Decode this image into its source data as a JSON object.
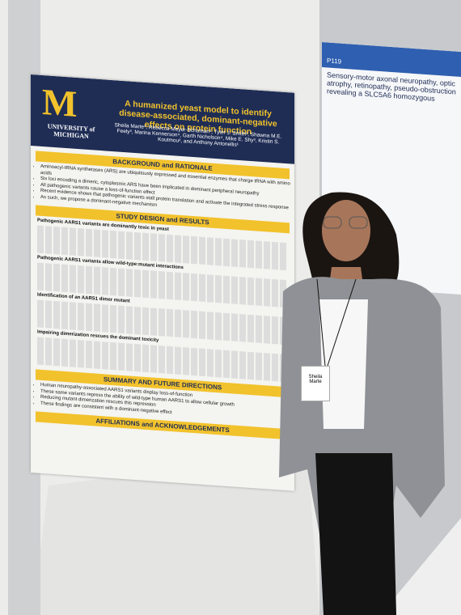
{
  "poster": {
    "logo": "UNIVERSITY of MICHIGAN",
    "title": "A humanized yeast model to identify disease-associated, dominant-negative effects on protein function",
    "authors": "Sheila Marte¹, Rebecca Meyer-Schuman¹, Tyler J. Smith², Shawna M.E. Feely³, Marina Kennerson⁴, Garth Nicholson⁴, Mike E. Shy³, Kristin S. Koutmou², and Anthony Antonellis¹",
    "background": {
      "heading": "BACKGROUND and RATIONALE",
      "bullets": [
        "Aminoacyl-tRNA synthetases (ARS) are ubiquitously expressed and essential enzymes that charge tRNA with amino acids",
        "Six loci encoding a dimeric, cytoplasmic ARS have been implicated in dominant peripheral neuropathy",
        "All pathogenic variants cause a loss-of-function effect",
        "Recent evidence shows that pathogenic variants stall protein translation and activate the integrated stress response",
        "As such, we propose a dominant-negative mechanism"
      ]
    },
    "results": {
      "heading": "STUDY DESIGN and RESULTS",
      "subheads": [
        "Pathogenic AARS1 variants are dominantly toxic in yeast",
        "Pathogenic AARS1 variants allow wild-type:mutant interactions",
        "Identification of an AARS1 dimer mutant",
        "Impairing dimerization rescues the dominant toxicity"
      ]
    },
    "summary": {
      "heading": "SUMMARY AND FUTURE DIRECTIONS",
      "bullets": [
        "Human neuropathy-associated AARS1 variants display loss-of-function",
        "These same variants repress the ability of wild-type human AARS1 to allow cellular growth",
        "Reducing mutant dimerization rescues this repression",
        "These findings are consistent with a dominant-negative effect"
      ]
    },
    "affiliations": {
      "heading": "AFFILIATIONS and ACKNOWLEDGEMENTS"
    }
  },
  "neighbor_poster": {
    "id": "P119",
    "title": "Sensory-motor axonal neuropathy, optic atrophy, retinopathy, pseudo-obstruction revealing a SLC5A6 homozygous"
  },
  "badge": {
    "first": "Sheila",
    "last": "Marte"
  }
}
